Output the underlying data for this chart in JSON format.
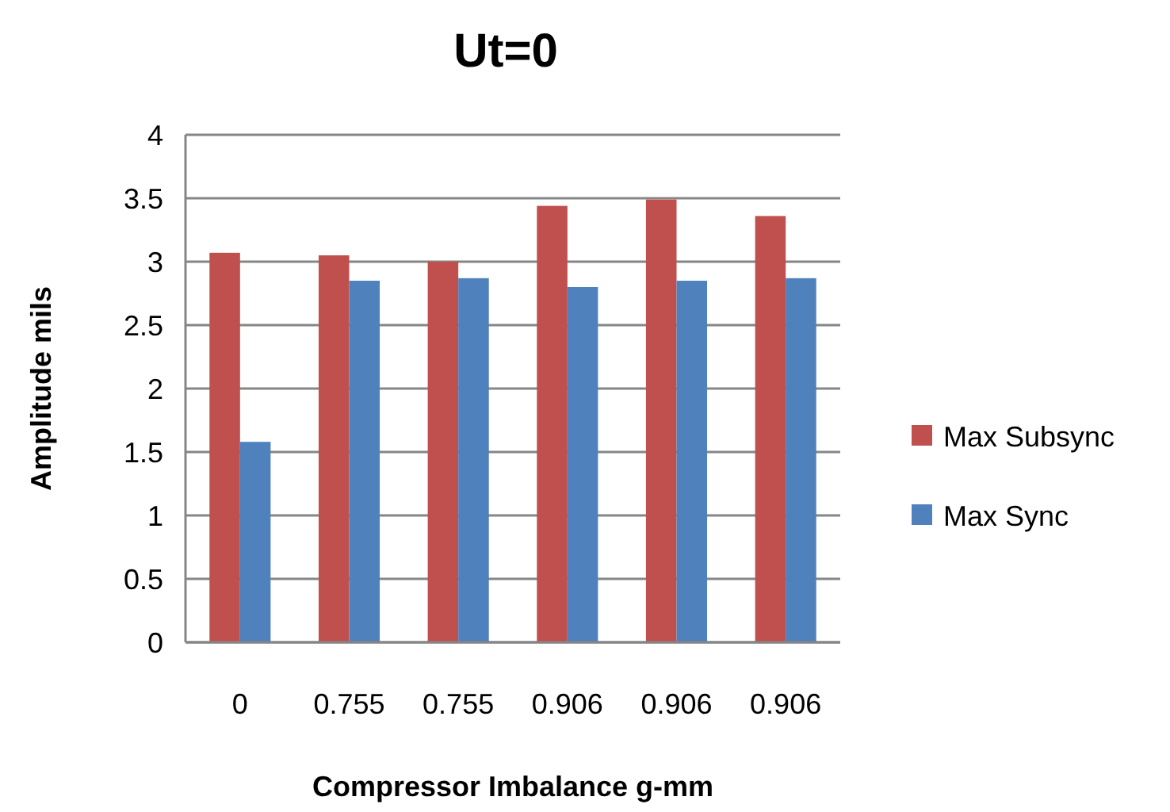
{
  "chart_data": {
    "type": "bar",
    "title": "Ut=0",
    "xlabel": "Compressor Imbalance g-mm",
    "ylabel": "Amplitude mils",
    "categories": [
      "0",
      "0.755",
      "0.755",
      "0.906",
      "0.906",
      "0.906"
    ],
    "series": [
      {
        "name": "Max Subsync",
        "color": "#c0504d",
        "values": [
          3.07,
          3.05,
          3.0,
          3.44,
          3.49,
          3.36
        ]
      },
      {
        "name": "Max Sync",
        "color": "#4f81bd",
        "values": [
          1.58,
          2.85,
          2.87,
          2.8,
          2.85,
          2.87
        ]
      }
    ],
    "ylim": [
      0,
      4
    ],
    "yticks": [
      0,
      0.5,
      1,
      1.5,
      2,
      2.5,
      3,
      3.5,
      4
    ],
    "grid": "y",
    "legend": "right"
  }
}
